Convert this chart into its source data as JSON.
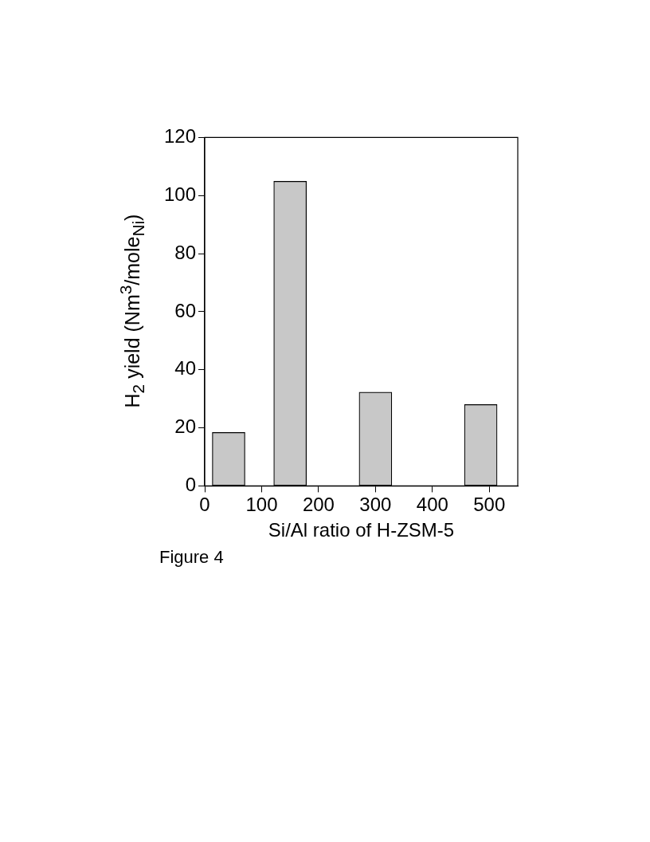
{
  "chart_data": {
    "type": "bar",
    "x": [
      42,
      150,
      300,
      485
    ],
    "values": [
      18.4,
      104.9,
      32.3,
      28.0
    ],
    "color": "#c8c8c8",
    "xlabel": "Si/Al ratio of H-ZSM-5",
    "ylabel": "H$_{2}$ yield (Nm$^{3}$/mole$_{Ni}$)",
    "xlim": [
      0,
      550
    ],
    "xticks": [
      0,
      100,
      200,
      300,
      400,
      500
    ],
    "ylim": [
      0,
      120
    ],
    "yticks": [
      0,
      20,
      40,
      60,
      80,
      100,
      120
    ],
    "grid": false,
    "legend": false,
    "annotations": [
      "Figure 4"
    ]
  }
}
